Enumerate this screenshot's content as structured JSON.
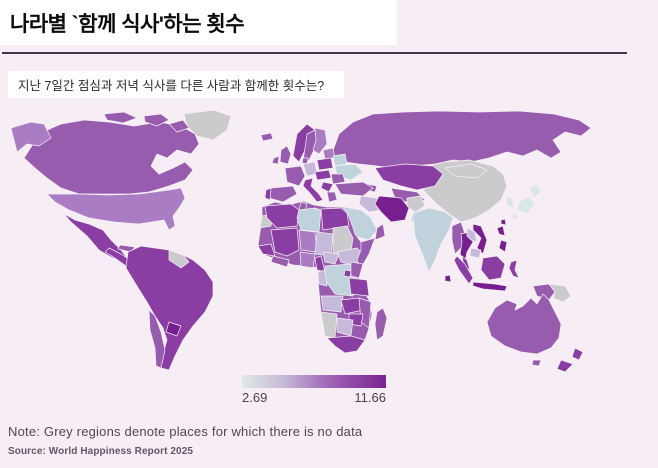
{
  "header": {
    "title": "나라별 `함께 식사'하는 횟수"
  },
  "subtitle": {
    "text": "지난 7일간 점심과 저녁 식사를 다른 사람과 함께한 횟수는?"
  },
  "note": {
    "text": "Note: Grey regions denote places for which there is no data"
  },
  "source": {
    "text": "Source: World Happiness Report 2025"
  },
  "legend": {
    "min_label": "2.69",
    "max_label": "11.66"
  },
  "chart_data": {
    "type": "choropleth",
    "title": "나라별 `함께 식사'하는 횟수",
    "question": "지난 7일간 점심과 저녁 식사를 다른 사람과 함께한 횟수는?",
    "metric": "shared lunches and dinners with others in the last 7 days",
    "scale": {
      "min": 2.69,
      "max": 11.66,
      "no_data_note": "Grey regions denote places for which there is no data"
    },
    "legend": {
      "stops": [
        {
          "offset": 0,
          "color": "#dde9e6"
        },
        {
          "offset": 28,
          "color": "#c7bcd9"
        },
        {
          "offset": 60,
          "color": "#a066b6"
        },
        {
          "offset": 100,
          "color": "#7a2391"
        }
      ]
    },
    "level_colors": {
      "no_data": "#cbcbcd",
      "lowest": "#dbe7e4",
      "very_low": "#c0d2dc",
      "low": "#c6badb",
      "mid": "#aa7cc4",
      "high": "#975cae",
      "higher": "#8a3da3",
      "highest": "#781f90"
    },
    "regions": {
      "greenland": "no_data",
      "canada": "high",
      "usa": "mid",
      "mexico": "higher",
      "central-america": "higher",
      "cuba": "high",
      "hispaniola": "higher",
      "south-america": "higher",
      "guyanas": "no_data",
      "paraguay": "highest",
      "chile": "high",
      "iceland": "high",
      "uk": "high",
      "ireland": "high",
      "norway": "higher",
      "sweden": "high",
      "finland": "mid",
      "denmark": "high",
      "baltics": "mid",
      "germany": "low",
      "france": "high",
      "spain": "high",
      "portugal": "higher",
      "poland": "higher",
      "belarus": "very_low",
      "ukraine": "very_low",
      "central-europe": "higher",
      "romania": "high",
      "balkans": "higher",
      "italy": "higher",
      "greece": "high",
      "russia": "high",
      "kazakhstan": "higher",
      "central-asia": "high",
      "caucasus": "high",
      "turkey": "high",
      "iraq-syria": "low",
      "iran": "highest",
      "afghanistan": "no_data",
      "pakistan": "very_low",
      "saudi-arabia": "very_low",
      "yemen": "highest",
      "oman": "high",
      "india": "very_low",
      "sri-lanka": "highest",
      "bangladesh": "mid",
      "china": "no_data",
      "mongolia": "no_data",
      "myanmar": "high",
      "thailand": "highest",
      "laos": "low",
      "vietnam": "highest",
      "cambodia": "low",
      "malay-peninsula": "higher",
      "sumatra": "higher",
      "java": "highest",
      "borneo": "higher",
      "sulawesi": "higher",
      "philippines": "highest",
      "taiwan": "highest",
      "west-papua": "high",
      "papua-new-guinea": "no_data",
      "japan": "lowest",
      "south-korea": "lowest",
      "africa-base": "high",
      "western-sahara": "no_data",
      "algeria": "higher",
      "tunisia": "high",
      "libya": "very_low",
      "egypt": "higher",
      "mali": "higher",
      "niger": "mid",
      "chad": "low",
      "sudan": "no_data",
      "ethiopia": "low",
      "somalia": "high",
      "senegal-guinea": "higher",
      "ghana-ivory-coast": "high",
      "nigeria": "mid",
      "cameroon": "higher",
      "central-african-republic": "low",
      "dr-congo": "very_low",
      "congo-gabon": "low",
      "uganda": "higher",
      "kenya": "high",
      "tanzania": "higher",
      "angola": "low",
      "zambia": "higher",
      "mozambique": "high",
      "zimbabwe": "higher",
      "botswana": "low",
      "namibia": "no_data",
      "south-africa": "higher",
      "madagascar": "high",
      "australia": "high",
      "tasmania": "high",
      "new-zealand": "higher"
    }
  }
}
